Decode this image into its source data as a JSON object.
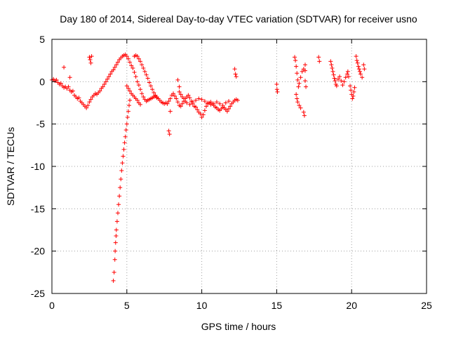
{
  "chart_data": {
    "type": "scatter",
    "title": "Day 180 of 2014, Sidereal Day-to-day VTEC variation (SDTVAR) for receiver usno",
    "xlabel": "GPS time / hours",
    "ylabel": "SDTVAR / TECUs",
    "xlim": [
      0,
      25
    ],
    "ylim": [
      -25,
      5
    ],
    "xticks": [
      0,
      5,
      10,
      15,
      20,
      25
    ],
    "yticks": [
      -25,
      -20,
      -15,
      -10,
      -5,
      0,
      5
    ],
    "xtick_labels": [
      "0",
      "5",
      "10",
      "15",
      "20",
      "25"
    ],
    "ytick_labels": [
      "-25",
      "-20",
      "-15",
      "-10",
      "-5",
      "0",
      "5"
    ],
    "grid": true,
    "marker": "+",
    "color": "#ff0000",
    "series": [
      {
        "name": "usno",
        "points": [
          [
            0.0,
            0.2
          ],
          [
            0.1,
            0.3
          ],
          [
            0.2,
            0.1
          ],
          [
            0.3,
            0.2
          ],
          [
            0.4,
            -0.1
          ],
          [
            0.5,
            -0.3
          ],
          [
            0.6,
            -0.2
          ],
          [
            0.7,
            -0.5
          ],
          [
            0.8,
            -0.7
          ],
          [
            0.9,
            -0.6
          ],
          [
            1.0,
            -0.8
          ],
          [
            1.1,
            -0.6
          ],
          [
            1.2,
            -1.0
          ],
          [
            1.3,
            -1.2
          ],
          [
            1.4,
            -1.1
          ],
          [
            1.5,
            -1.6
          ],
          [
            1.6,
            -1.8
          ],
          [
            1.7,
            -2.0
          ],
          [
            1.8,
            -1.9
          ],
          [
            1.9,
            -2.3
          ],
          [
            2.0,
            -2.5
          ],
          [
            2.1,
            -2.7
          ],
          [
            2.2,
            -2.9
          ],
          [
            2.3,
            -3.1
          ],
          [
            2.4,
            -2.8
          ],
          [
            2.5,
            -2.4
          ],
          [
            2.6,
            -2.1
          ],
          [
            2.7,
            -1.8
          ],
          [
            2.8,
            -1.6
          ],
          [
            2.9,
            -1.4
          ],
          [
            3.0,
            -1.5
          ],
          [
            3.1,
            -1.3
          ],
          [
            3.2,
            -1.1
          ],
          [
            3.3,
            -0.8
          ],
          [
            3.4,
            -0.6
          ],
          [
            3.5,
            -0.3
          ],
          [
            3.6,
            0.0
          ],
          [
            3.7,
            0.3
          ],
          [
            3.8,
            0.6
          ],
          [
            3.9,
            0.9
          ],
          [
            4.0,
            1.2
          ],
          [
            4.1,
            1.4
          ],
          [
            4.2,
            1.7
          ],
          [
            4.3,
            2.0
          ],
          [
            4.4,
            2.3
          ],
          [
            4.5,
            2.6
          ],
          [
            4.6,
            2.8
          ],
          [
            4.7,
            3.0
          ],
          [
            4.8,
            3.1
          ],
          [
            4.9,
            3.2
          ],
          [
            5.0,
            3.0
          ],
          [
            5.1,
            2.7
          ],
          [
            5.2,
            2.3
          ],
          [
            5.3,
            1.9
          ],
          [
            5.4,
            1.6
          ],
          [
            5.5,
            1.1
          ],
          [
            5.6,
            0.6
          ],
          [
            5.7,
            0.0
          ],
          [
            5.8,
            -0.4
          ],
          [
            5.9,
            -0.9
          ],
          [
            6.0,
            -1.4
          ],
          [
            6.1,
            -1.8
          ],
          [
            6.2,
            -2.1
          ],
          [
            6.3,
            -2.3
          ],
          [
            6.4,
            -2.2
          ],
          [
            6.5,
            -2.1
          ],
          [
            6.6,
            -2.0
          ],
          [
            6.7,
            -1.9
          ],
          [
            6.8,
            -1.8
          ],
          [
            6.9,
            -1.7
          ],
          [
            7.0,
            -1.9
          ],
          [
            7.1,
            -2.0
          ],
          [
            7.2,
            -2.2
          ],
          [
            7.3,
            -2.4
          ],
          [
            7.4,
            -2.5
          ],
          [
            7.5,
            -2.6
          ],
          [
            7.6,
            -2.5
          ],
          [
            7.7,
            -2.6
          ],
          [
            7.8,
            -2.3
          ],
          [
            7.9,
            -2.0
          ],
          [
            8.0,
            -1.6
          ],
          [
            8.1,
            -1.4
          ],
          [
            8.2,
            -1.7
          ],
          [
            8.3,
            -2.0
          ],
          [
            8.4,
            -2.4
          ],
          [
            8.5,
            -2.8
          ],
          [
            8.6,
            -2.9
          ],
          [
            8.7,
            -2.6
          ],
          [
            8.8,
            -2.3
          ],
          [
            8.9,
            -2.0
          ],
          [
            9.0,
            -1.8
          ],
          [
            9.1,
            -1.6
          ],
          [
            9.2,
            -1.9
          ],
          [
            9.3,
            -2.3
          ],
          [
            9.4,
            -2.6
          ],
          [
            9.5,
            -2.9
          ],
          [
            9.6,
            -3.0
          ],
          [
            9.7,
            -3.3
          ],
          [
            9.8,
            -3.6
          ],
          [
            9.9,
            -3.8
          ],
          [
            10.0,
            -4.2
          ],
          [
            10.1,
            -3.9
          ],
          [
            10.2,
            -3.4
          ],
          [
            10.3,
            -2.9
          ],
          [
            10.4,
            -2.6
          ],
          [
            10.5,
            -2.5
          ],
          [
            10.6,
            -2.4
          ],
          [
            10.7,
            -2.6
          ],
          [
            10.8,
            -2.8
          ],
          [
            10.9,
            -3.0
          ],
          [
            11.0,
            -3.1
          ],
          [
            11.1,
            -3.3
          ],
          [
            11.2,
            -3.4
          ],
          [
            11.3,
            -3.2
          ],
          [
            11.4,
            -3.0
          ],
          [
            11.5,
            -3.1
          ],
          [
            11.6,
            -3.3
          ],
          [
            11.7,
            -3.5
          ],
          [
            11.8,
            -3.2
          ],
          [
            11.9,
            -2.9
          ],
          [
            12.0,
            -2.6
          ],
          [
            12.1,
            -2.4
          ],
          [
            12.2,
            -2.2
          ],
          [
            12.3,
            -2.1
          ],
          [
            12.4,
            -2.2
          ],
          [
            5.0,
            -0.5
          ],
          [
            5.1,
            -0.8
          ],
          [
            5.2,
            -1.1
          ],
          [
            5.3,
            -1.4
          ],
          [
            5.4,
            -1.6
          ],
          [
            5.5,
            -1.8
          ],
          [
            5.6,
            -2.0
          ],
          [
            5.7,
            -2.2
          ],
          [
            5.8,
            -2.5
          ],
          [
            5.9,
            -2.7
          ],
          [
            5.5,
            3.0
          ],
          [
            5.6,
            3.1
          ],
          [
            5.7,
            3.0
          ],
          [
            5.8,
            2.7
          ],
          [
            5.9,
            2.4
          ],
          [
            6.0,
            2.0
          ],
          [
            6.1,
            1.6
          ],
          [
            6.2,
            1.2
          ],
          [
            6.3,
            0.8
          ],
          [
            6.4,
            0.4
          ],
          [
            6.5,
            -0.1
          ],
          [
            6.6,
            -0.5
          ],
          [
            6.7,
            -0.9
          ],
          [
            6.8,
            -1.3
          ],
          [
            6.9,
            -1.6
          ],
          [
            7.0,
            -1.8
          ],
          [
            8.5,
            -1.2
          ],
          [
            8.6,
            -1.5
          ],
          [
            8.7,
            -1.8
          ],
          [
            8.8,
            -2.0
          ],
          [
            8.9,
            -2.3
          ],
          [
            9.0,
            -2.5
          ],
          [
            9.2,
            -2.7
          ],
          [
            9.4,
            -2.4
          ],
          [
            9.6,
            -2.2
          ],
          [
            9.8,
            -2.0
          ],
          [
            10.0,
            -2.1
          ],
          [
            10.2,
            -2.3
          ],
          [
            10.4,
            -2.5
          ],
          [
            10.6,
            -2.7
          ],
          [
            10.8,
            -2.6
          ],
          [
            11.0,
            -2.4
          ],
          [
            11.2,
            -2.6
          ],
          [
            11.4,
            -2.8
          ],
          [
            11.6,
            -2.5
          ],
          [
            11.8,
            -2.3
          ],
          [
            4.1,
            -23.5
          ],
          [
            4.15,
            -22.5
          ],
          [
            4.2,
            -21.0
          ],
          [
            4.22,
            -20.0
          ],
          [
            4.25,
            -19.0
          ],
          [
            4.28,
            -18.2
          ],
          [
            4.3,
            -17.5
          ],
          [
            4.35,
            -16.5
          ],
          [
            4.4,
            -15.5
          ],
          [
            4.45,
            -14.5
          ],
          [
            4.5,
            -13.5
          ],
          [
            4.55,
            -12.5
          ],
          [
            4.6,
            -11.5
          ],
          [
            4.65,
            -10.5
          ],
          [
            4.7,
            -9.6
          ],
          [
            4.75,
            -8.8
          ],
          [
            4.8,
            -8.0
          ],
          [
            4.85,
            -7.2
          ],
          [
            4.9,
            -6.5
          ],
          [
            4.95,
            -5.7
          ],
          [
            5.0,
            -5.0
          ],
          [
            5.05,
            -4.2
          ],
          [
            5.1,
            -3.5
          ],
          [
            5.15,
            -2.8
          ],
          [
            5.2,
            -2.2
          ],
          [
            0.8,
            1.7
          ],
          [
            1.2,
            0.5
          ],
          [
            2.5,
            2.9
          ],
          [
            2.55,
            2.6
          ],
          [
            2.6,
            2.2
          ],
          [
            2.65,
            3.0
          ],
          [
            7.8,
            -5.8
          ],
          [
            7.85,
            -6.2
          ],
          [
            7.9,
            -3.5
          ],
          [
            8.4,
            0.2
          ],
          [
            8.5,
            -0.6
          ],
          [
            12.2,
            1.5
          ],
          [
            12.25,
            0.9
          ],
          [
            12.3,
            0.6
          ],
          [
            15.0,
            -0.3
          ],
          [
            15.02,
            -0.9
          ],
          [
            15.05,
            -1.2
          ],
          [
            16.2,
            2.9
          ],
          [
            16.25,
            2.5
          ],
          [
            16.3,
            1.8
          ],
          [
            16.35,
            1.0
          ],
          [
            16.4,
            0.2
          ],
          [
            16.45,
            -0.6
          ],
          [
            16.3,
            -1.5
          ],
          [
            16.35,
            -2.0
          ],
          [
            16.4,
            -2.4
          ],
          [
            16.5,
            -2.8
          ],
          [
            16.6,
            -3.1
          ],
          [
            16.5,
            -0.2
          ],
          [
            16.6,
            0.5
          ],
          [
            16.7,
            1.2
          ],
          [
            16.8,
            1.5
          ],
          [
            16.9,
            1.3
          ],
          [
            16.8,
            -3.6
          ],
          [
            16.85,
            -4.0
          ],
          [
            16.9,
            0.1
          ],
          [
            16.95,
            -0.6
          ],
          [
            16.9,
            2.0
          ],
          [
            17.8,
            2.9
          ],
          [
            17.85,
            2.4
          ],
          [
            18.6,
            2.4
          ],
          [
            18.65,
            2.0
          ],
          [
            18.7,
            1.6
          ],
          [
            18.75,
            1.2
          ],
          [
            18.8,
            0.8
          ],
          [
            18.85,
            0.4
          ],
          [
            18.9,
            0.1
          ],
          [
            18.95,
            -0.3
          ],
          [
            19.0,
            -0.5
          ],
          [
            19.1,
            0.3
          ],
          [
            19.2,
            0.6
          ],
          [
            19.3,
            0.1
          ],
          [
            19.4,
            -0.4
          ],
          [
            19.5,
            0.0
          ],
          [
            19.6,
            0.5
          ],
          [
            19.7,
            0.9
          ],
          [
            19.75,
            1.2
          ],
          [
            19.8,
            0.6
          ],
          [
            19.9,
            -0.5
          ],
          [
            19.95,
            -1.0
          ],
          [
            20.0,
            -1.5
          ],
          [
            20.05,
            -2.0
          ],
          [
            20.1,
            -1.7
          ],
          [
            20.15,
            -1.2
          ],
          [
            20.2,
            -0.7
          ],
          [
            20.3,
            3.0
          ],
          [
            20.35,
            2.5
          ],
          [
            20.4,
            2.2
          ],
          [
            20.45,
            1.8
          ],
          [
            20.5,
            1.5
          ],
          [
            20.55,
            1.2
          ],
          [
            20.6,
            0.9
          ],
          [
            20.7,
            0.5
          ],
          [
            20.8,
            2.0
          ],
          [
            20.85,
            1.5
          ]
        ]
      }
    ]
  }
}
